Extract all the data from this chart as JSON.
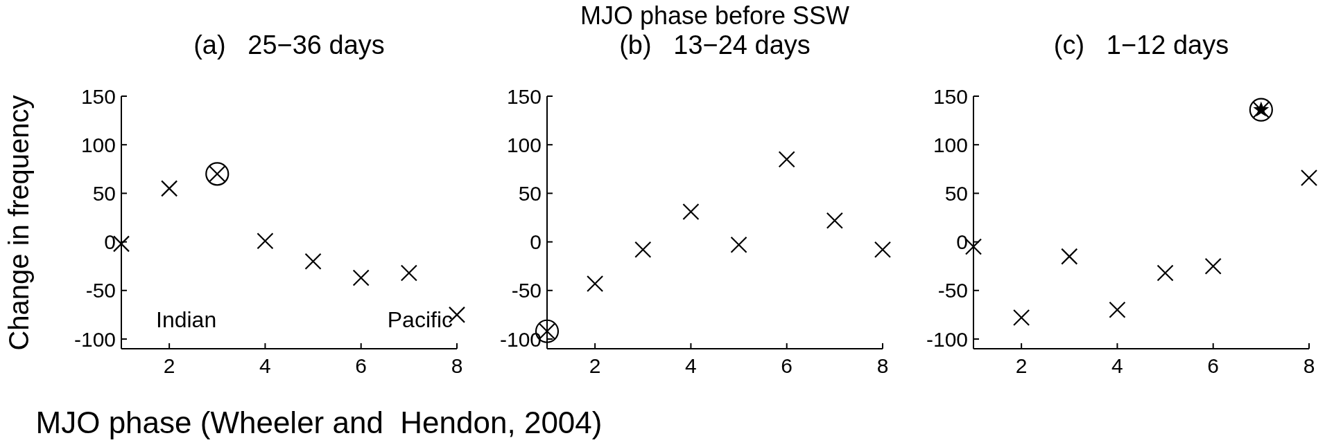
{
  "chart_data": [
    {
      "type": "scatter",
      "title": "(a)   25−36 days",
      "ylabel": "Change in frequency",
      "x": [
        1,
        2,
        3,
        4,
        5,
        6,
        7,
        8
      ],
      "xlim": [
        1,
        8
      ],
      "xticks": [
        2,
        4,
        6,
        8
      ],
      "ylim": [
        -110,
        150
      ],
      "yticks": [
        -100,
        -50,
        0,
        50,
        100,
        150
      ],
      "annotations": [
        "Indian",
        "Pacific"
      ],
      "grid": false,
      "legend": false,
      "series": [
        {
          "color": "#000000",
          "marker": "cross",
          "values": [
            -2,
            55,
            null,
            1,
            -20,
            -37,
            -32,
            -75
          ]
        },
        {
          "color": "#000000",
          "marker": "circle",
          "values": [
            null,
            null,
            70,
            null,
            null,
            null,
            null,
            null
          ]
        }
      ]
    },
    {
      "type": "scatter",
      "title": "MJO phase before SSW",
      "subtitle": "(b)   13−24 days",
      "xlabel": "MJO phase (Wheeler and  Hendon, 2004)",
      "x": [
        1,
        2,
        3,
        4,
        5,
        6,
        7,
        8
      ],
      "xlim": [
        1,
        8
      ],
      "xticks": [
        2,
        4,
        6,
        8
      ],
      "ylim": [
        -110,
        150
      ],
      "yticks": [
        -100,
        -50,
        0,
        50,
        100,
        150
      ],
      "grid": false,
      "legend": false,
      "series": [
        {
          "color": "#000000",
          "marker": "cross",
          "values": [
            null,
            -43,
            -8,
            31,
            -3,
            85,
            22,
            -8
          ]
        },
        {
          "color": "#000000",
          "marker": "circle",
          "values": [
            -92,
            null,
            null,
            null,
            null,
            null,
            null,
            null
          ]
        }
      ]
    },
    {
      "type": "scatter",
      "title": "(c)   1−12 days",
      "x": [
        1,
        2,
        3,
        4,
        5,
        6,
        7,
        8
      ],
      "xlim": [
        1,
        8
      ],
      "xticks": [
        2,
        4,
        6,
        8
      ],
      "ylim": [
        -110,
        150
      ],
      "yticks": [
        -100,
        -50,
        0,
        50,
        100,
        150
      ],
      "grid": false,
      "legend": false,
      "series": [
        {
          "color": "#000000",
          "marker": "cross",
          "values": [
            -5,
            -78,
            -15,
            -70,
            -32,
            -25,
            null,
            66
          ]
        },
        {
          "color": "#000000",
          "marker": "star",
          "values": [
            null,
            null,
            null,
            null,
            null,
            null,
            136,
            null
          ]
        },
        {
          "color": "#000000",
          "marker": "circle",
          "values": [
            null,
            null,
            null,
            null,
            null,
            null,
            136,
            null
          ]
        }
      ]
    }
  ]
}
